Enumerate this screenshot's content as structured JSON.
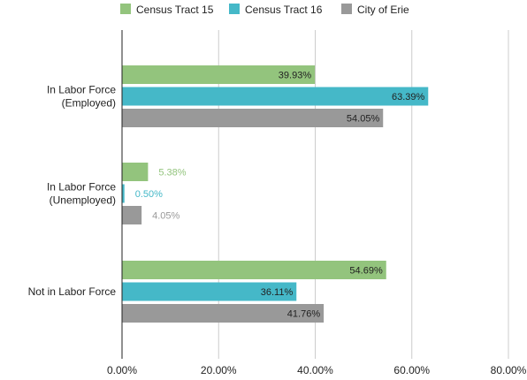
{
  "chart_data": {
    "type": "bar",
    "orientation": "horizontal",
    "categories": [
      [
        "In Labor Force",
        "(Employed)"
      ],
      [
        "In Labor Force",
        "(Unemployed)"
      ],
      [
        "Not in Labor Force"
      ]
    ],
    "series": [
      {
        "name": "Census Tract 15",
        "color": "#93c47d",
        "values": [
          39.93,
          5.38,
          54.69
        ],
        "labels": [
          "39.93%",
          "5.38%",
          "54.69%"
        ]
      },
      {
        "name": "Census Tract 16",
        "color": "#45b8c8",
        "values": [
          63.39,
          0.5,
          36.11
        ],
        "labels": [
          "63.39%",
          "0.50%",
          "36.11%"
        ]
      },
      {
        "name": "City of Erie",
        "color": "#999999",
        "values": [
          54.05,
          4.05,
          41.76
        ],
        "labels": [
          "54.05%",
          "4.05%",
          "41.76%"
        ]
      }
    ],
    "xlim": [
      0,
      80
    ],
    "xticks": [
      0,
      20,
      40,
      60,
      80
    ],
    "xtick_labels": [
      "0.00%",
      "20.00%",
      "40.00%",
      "60.00%",
      "80.00%"
    ],
    "grid": true,
    "legend_position": "top"
  }
}
